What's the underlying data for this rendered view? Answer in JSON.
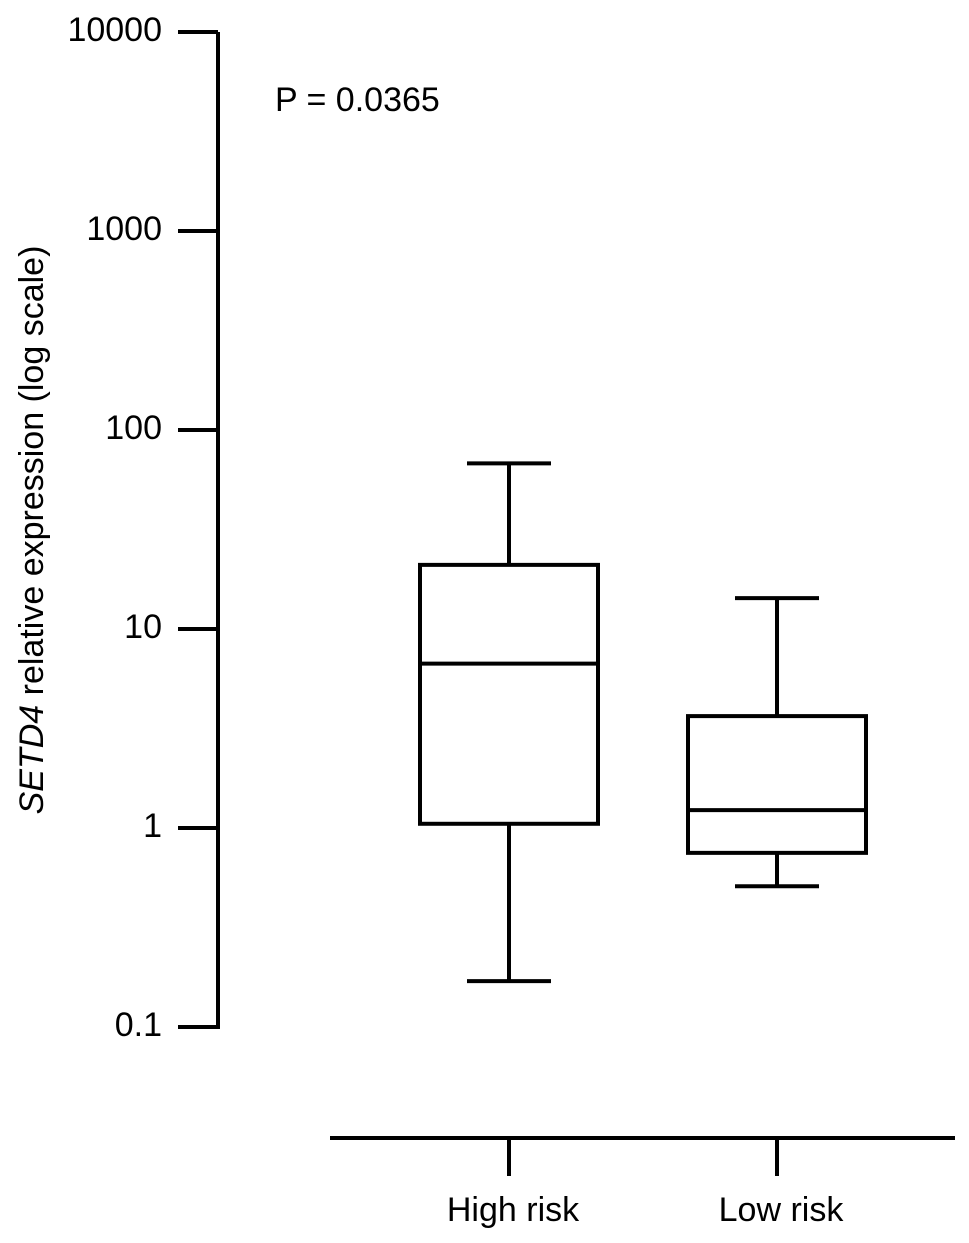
{
  "chart_data": {
    "type": "box",
    "ylabel_parts": [
      {
        "text": "SETD4",
        "italic": true
      },
      {
        "text": "relative expression (log scale)",
        "italic": false
      }
    ],
    "annotation": "P = 0.0365",
    "categories": [
      "High risk",
      "Low risk"
    ],
    "boxes": [
      {
        "whislo": 0.17,
        "q1": 1.05,
        "med": 6.7,
        "q3": 21,
        "whishi": 68
      },
      {
        "whislo": 0.51,
        "q1": 0.75,
        "med": 1.23,
        "q3": 3.65,
        "whishi": 14.3
      }
    ],
    "color": "#000000",
    "yscale": "log",
    "ylim": [
      0.1,
      10000
    ],
    "yticks": [
      0.1,
      1,
      10,
      100,
      1000,
      10000
    ]
  }
}
